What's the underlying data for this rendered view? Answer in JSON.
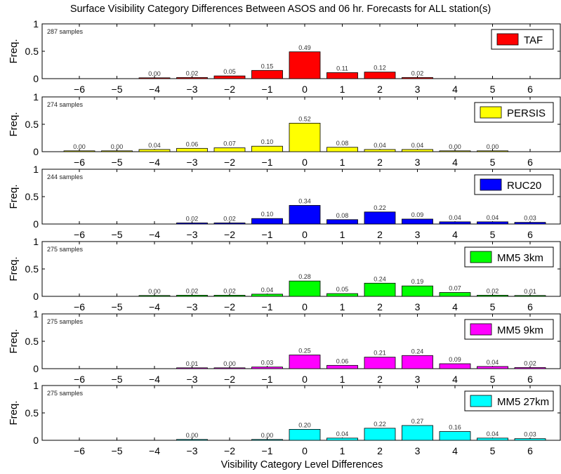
{
  "title": "Surface Visibility Category Differences Between ASOS and 06 hr. Forecasts for ALL station(s)",
  "xlabel": "Visibility Category Level Differences",
  "chart_data": [
    {
      "type": "bar",
      "ylabel": "Freq.",
      "ylim": [
        0,
        1
      ],
      "yticks": [
        "0",
        "0.5",
        "1"
      ],
      "categories": [
        "-6",
        "-5",
        "-4",
        "-3",
        "-2",
        "-1",
        "0",
        "1",
        "2",
        "3",
        "4",
        "5",
        "6"
      ],
      "legend": "TAF",
      "color": "#ff0000",
      "samples": "287 samples",
      "values": [
        null,
        null,
        0.0,
        0.02,
        0.05,
        0.15,
        0.49,
        0.11,
        0.12,
        0.02,
        null,
        null,
        null
      ],
      "labels": [
        null,
        null,
        "0.00",
        "0.02",
        "0.05",
        "0.15",
        "0.49",
        "0.11",
        "0.12",
        "0.02",
        null,
        null,
        null
      ]
    },
    {
      "type": "bar",
      "ylabel": "Freq.",
      "ylim": [
        0,
        1
      ],
      "yticks": [
        "0",
        "0.5",
        "1"
      ],
      "categories": [
        "-6",
        "-5",
        "-4",
        "-3",
        "-2",
        "-1",
        "0",
        "1",
        "2",
        "3",
        "4",
        "5",
        "6"
      ],
      "legend": "PERSIS",
      "color": "#ffff00",
      "samples": "274 samples",
      "values": [
        0.0,
        0.0,
        0.04,
        0.06,
        0.07,
        0.1,
        0.52,
        0.08,
        0.04,
        0.04,
        0.0,
        0.0,
        null
      ],
      "labels": [
        "0.00",
        "0.00",
        "0.04",
        "0.06",
        "0.07",
        "0.10",
        "0.52",
        "0.08",
        "0.04",
        "0.04",
        "0.00",
        "0.00",
        null
      ]
    },
    {
      "type": "bar",
      "ylabel": "Freq.",
      "ylim": [
        0,
        1
      ],
      "yticks": [
        "0",
        "0.5",
        "1"
      ],
      "categories": [
        "-6",
        "-5",
        "-4",
        "-3",
        "-2",
        "-1",
        "0",
        "1",
        "2",
        "3",
        "4",
        "5",
        "6"
      ],
      "legend": "RUC20",
      "color": "#0000ff",
      "samples": "244 samples",
      "values": [
        null,
        null,
        null,
        0.02,
        0.02,
        0.1,
        0.34,
        0.08,
        0.22,
        0.09,
        0.04,
        0.04,
        0.03
      ],
      "labels": [
        null,
        null,
        null,
        "0.02",
        "0.02",
        "0.10",
        "0.34",
        "0.08",
        "0.22",
        "0.09",
        "0.04",
        "0.04",
        "0.03"
      ]
    },
    {
      "type": "bar",
      "ylabel": "Freq.",
      "ylim": [
        0,
        1
      ],
      "yticks": [
        "0",
        "0.5",
        "1"
      ],
      "categories": [
        "-6",
        "-5",
        "-4",
        "-3",
        "-2",
        "-1",
        "0",
        "1",
        "2",
        "3",
        "4",
        "5",
        "6"
      ],
      "legend": "MM5 3km",
      "color": "#00ff00",
      "samples": "275 samples",
      "values": [
        null,
        null,
        0.0,
        0.02,
        0.02,
        0.04,
        0.28,
        0.05,
        0.24,
        0.19,
        0.07,
        0.02,
        0.01
      ],
      "labels": [
        null,
        null,
        "0.00",
        "0.02",
        "0.02",
        "0.04",
        "0.28",
        "0.05",
        "0.24",
        "0.19",
        "0.07",
        "0.02",
        "0.01"
      ]
    },
    {
      "type": "bar",
      "ylabel": "Freq.",
      "ylim": [
        0,
        1
      ],
      "yticks": [
        "0",
        "0.5",
        "1"
      ],
      "categories": [
        "-6",
        "-5",
        "-4",
        "-3",
        "-2",
        "-1",
        "0",
        "1",
        "2",
        "3",
        "4",
        "5",
        "6"
      ],
      "legend": "MM5 9km",
      "color": "#ff00ff",
      "samples": "275 samples",
      "values": [
        null,
        null,
        null,
        0.01,
        0.0,
        0.03,
        0.25,
        0.06,
        0.21,
        0.24,
        0.09,
        0.04,
        0.02
      ],
      "labels": [
        null,
        null,
        null,
        "0.01",
        "0.00",
        "0.03",
        "0.25",
        "0.06",
        "0.21",
        "0.24",
        "0.09",
        "0.04",
        "0.02"
      ]
    },
    {
      "type": "bar",
      "ylabel": "Freq.",
      "ylim": [
        0,
        1
      ],
      "yticks": [
        "0",
        "0.5",
        "1"
      ],
      "categories": [
        "-6",
        "-5",
        "-4",
        "-3",
        "-2",
        "-1",
        "0",
        "1",
        "2",
        "3",
        "4",
        "5",
        "6"
      ],
      "legend": "MM5 27km",
      "color": "#00ffff",
      "samples": "275 samples",
      "values": [
        null,
        null,
        null,
        0.0,
        null,
        0.0,
        0.2,
        0.04,
        0.22,
        0.27,
        0.16,
        0.04,
        0.03
      ],
      "labels": [
        null,
        null,
        null,
        "0.00",
        null,
        "0.00",
        "0.20",
        "0.04",
        "0.22",
        "0.27",
        "0.16",
        "0.04",
        "0.03"
      ]
    }
  ]
}
